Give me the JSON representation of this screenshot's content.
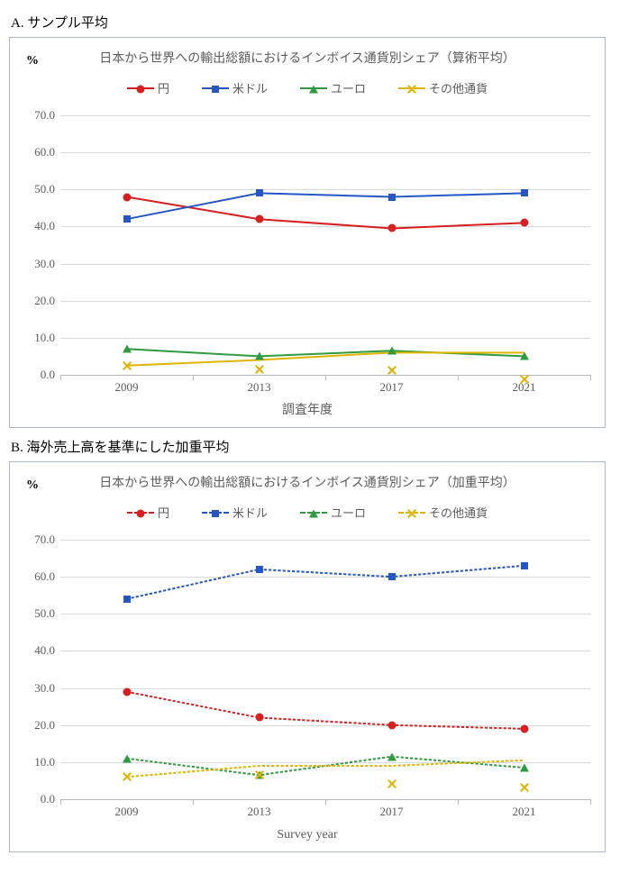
{
  "sections": {
    "a": {
      "heading": "A.  サンプル平均"
    },
    "b": {
      "heading": "B.  海外売上高を基準にした加重平均"
    }
  },
  "common": {
    "y_unit_label": "%",
    "categories_labels": [
      "2009",
      "2013",
      "2017",
      "2021"
    ],
    "legend_labels": {
      "yen": "円",
      "usd": "米ドル",
      "eur": "ユーロ",
      "other": "その他通貨"
    },
    "colors": {
      "yen": "#d81e1e",
      "usd": "#2457c5",
      "eur": "#2e9b3f",
      "other": "#e0b400",
      "grid": "#d9d9d9",
      "axis": "#b7b7b7",
      "text": "#5b5b5b",
      "background": "#ffffff",
      "border": "#aeb6c2"
    },
    "line_width": 2,
    "marker_size": 9,
    "font_family": "Times New Roman / MS Mincho serif"
  },
  "chart_a": {
    "type": "line",
    "title": "日本から世界への輸出総額におけるインボイス通貨別シェア（算術平均）",
    "x_axis_title": "調査年度",
    "dash": "solid",
    "y": {
      "min": 0,
      "max": 70,
      "step": 10,
      "labels": [
        "0.0",
        "10.0",
        "20.0",
        "30.0",
        "40.0",
        "50.0",
        "60.0",
        "70.0"
      ]
    },
    "x_positions_pct": [
      12.5,
      37.5,
      62.5,
      87.5
    ],
    "series": {
      "yen": {
        "values": [
          48.0,
          42.0,
          39.5,
          41.0
        ],
        "marker": "circle"
      },
      "usd": {
        "values": [
          42.0,
          49.0,
          48.0,
          49.0
        ],
        "marker": "square"
      },
      "eur": {
        "values": [
          7.0,
          5.0,
          6.5,
          5.0
        ],
        "marker": "triangle"
      },
      "other": {
        "values": [
          2.5,
          4.0,
          6.0,
          6.0
        ],
        "marker": "x"
      }
    }
  },
  "chart_b": {
    "type": "line",
    "title": "日本から世界への輸出総額におけるインボイス通貨別シェア（加重平均）",
    "x_axis_title": "Survey year",
    "dash": "dashed",
    "y": {
      "min": 0,
      "max": 70,
      "step": 10,
      "labels": [
        "0.0",
        "10.0",
        "20.0",
        "30.0",
        "40.0",
        "50.0",
        "60.0",
        "70.0"
      ]
    },
    "x_positions_pct": [
      12.5,
      37.5,
      62.5,
      87.5
    ],
    "series": {
      "yen": {
        "values": [
          29.0,
          22.0,
          20.0,
          19.0
        ],
        "marker": "circle"
      },
      "usd": {
        "values": [
          54.0,
          62.0,
          60.0,
          63.0
        ],
        "marker": "square"
      },
      "eur": {
        "values": [
          11.0,
          6.5,
          11.5,
          8.5
        ],
        "marker": "triangle"
      },
      "other": {
        "values": [
          6.0,
          9.0,
          9.0,
          10.5
        ],
        "marker": "x"
      }
    }
  }
}
